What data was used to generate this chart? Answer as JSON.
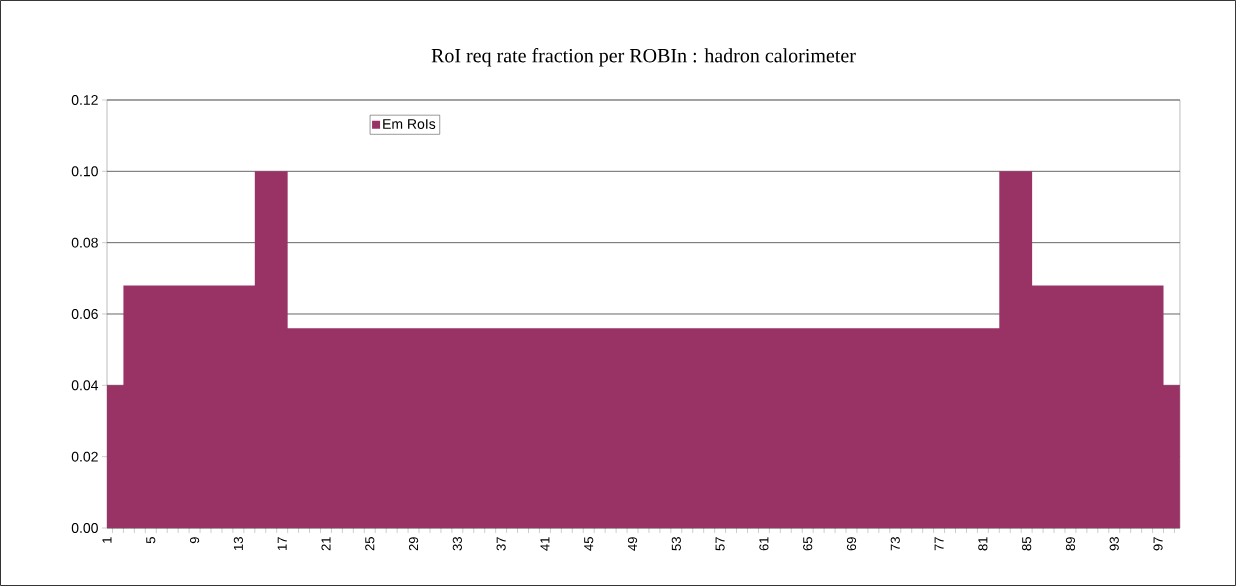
{
  "chart_data": {
    "type": "area",
    "title": "RoI req rate fraction per ROBIn : hadron calorimeter",
    "categories": [
      "1",
      null,
      null,
      null,
      "5",
      null,
      null,
      null,
      "9",
      null,
      null,
      null,
      "13",
      null,
      null,
      null,
      "17",
      null,
      null,
      null,
      "21",
      null,
      null,
      null,
      "25",
      null,
      null,
      null,
      "29",
      null,
      null,
      null,
      "33",
      null,
      null,
      null,
      "37",
      null,
      null,
      null,
      "41",
      null,
      null,
      null,
      "45",
      null,
      null,
      null,
      "49",
      null,
      null,
      null,
      "53",
      null,
      null,
      null,
      "57",
      null,
      null,
      null,
      "61",
      null,
      null,
      null,
      "65",
      null,
      null,
      null,
      "69",
      null,
      null,
      null,
      "73",
      null,
      null,
      null,
      "77",
      null,
      null,
      null,
      "81",
      null,
      null,
      null,
      "85",
      null,
      null,
      null,
      "89",
      null,
      null,
      null,
      "93",
      null,
      null,
      null,
      "97",
      null,
      null
    ],
    "series": [
      {
        "name": "Em RoIs",
        "color": "#993366",
        "values": [
          0.04,
          0.04,
          0.068,
          0.068,
          0.068,
          0.068,
          0.068,
          0.068,
          0.068,
          0.068,
          0.068,
          0.068,
          0.068,
          0.068,
          0.1,
          0.1,
          0.1,
          0.056,
          0.056,
          0.056,
          0.056,
          0.056,
          0.056,
          0.056,
          0.056,
          0.056,
          0.056,
          0.056,
          0.056,
          0.056,
          0.056,
          0.056,
          0.056,
          0.056,
          0.056,
          0.056,
          0.056,
          0.056,
          0.056,
          0.056,
          0.056,
          0.056,
          0.056,
          0.056,
          0.056,
          0.056,
          0.056,
          0.056,
          0.056,
          0.056,
          0.056,
          0.056,
          0.056,
          0.056,
          0.056,
          0.056,
          0.056,
          0.056,
          0.056,
          0.056,
          0.056,
          0.056,
          0.056,
          0.056,
          0.056,
          0.056,
          0.056,
          0.056,
          0.056,
          0.056,
          0.056,
          0.056,
          0.056,
          0.056,
          0.056,
          0.056,
          0.056,
          0.056,
          0.056,
          0.056,
          0.056,
          0.056,
          0.1,
          0.1,
          0.1,
          0.068,
          0.068,
          0.068,
          0.068,
          0.068,
          0.068,
          0.068,
          0.068,
          0.068,
          0.068,
          0.068,
          0.068,
          0.04,
          0.04
        ]
      }
    ],
    "ylim": [
      0,
      0.12
    ],
    "yticks": [
      {
        "value": 0,
        "label": "0.00"
      },
      {
        "value": 0.02,
        "label": "0.02"
      },
      {
        "value": 0.04,
        "label": "0.04"
      },
      {
        "value": 0.06,
        "label": "0.06"
      },
      {
        "value": 0.08,
        "label": "0.08"
      },
      {
        "value": 0.1,
        "label": "0.10"
      },
      {
        "value": 0.12,
        "label": "0.12"
      }
    ],
    "grid": "y",
    "legend": "top left"
  }
}
